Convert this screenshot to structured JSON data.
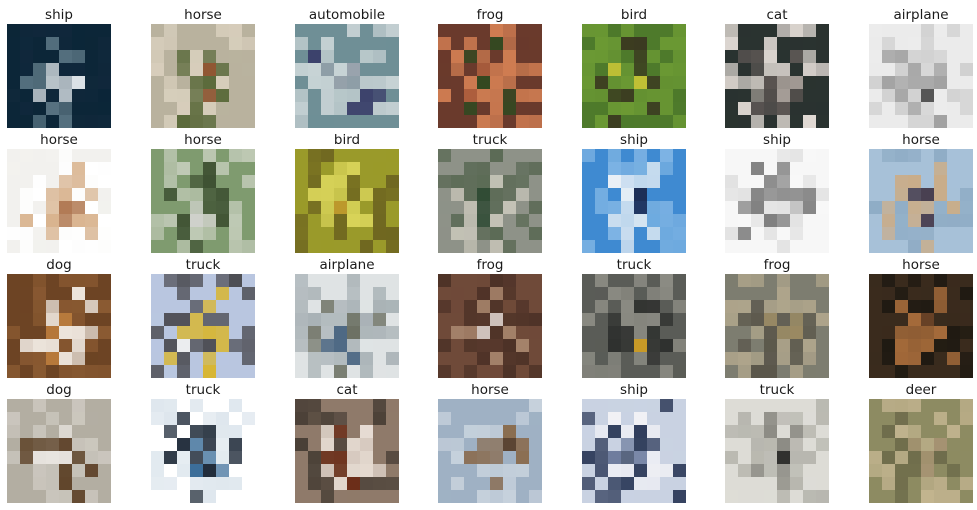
{
  "figure": {
    "rows": 4,
    "cols": 7,
    "images": [
      {
        "label": "ship",
        "palette": [
          "#0c2638",
          "#dfe6ea",
          "#5f7a88",
          "#10283b"
        ]
      },
      {
        "label": "horse",
        "palette": [
          "#b9b29e",
          "#8a4a24",
          "#5c6b3c",
          "#d8cfbd"
        ]
      },
      {
        "label": "automobile",
        "palette": [
          "#6f8f96",
          "#9aa3ad",
          "#3b3f6a",
          "#c9d4d6"
        ]
      },
      {
        "label": "frog",
        "palette": [
          "#6a3a2c",
          "#b0603e",
          "#2c4a20",
          "#d07d52"
        ]
      },
      {
        "label": "bird",
        "palette": [
          "#4e7a2b",
          "#d9cf38",
          "#3a3520",
          "#6c9a34"
        ]
      },
      {
        "label": "cat",
        "palette": [
          "#2a3330",
          "#a49c96",
          "#5c5653",
          "#e3dcd6"
        ]
      },
      {
        "label": "airplane",
        "palette": [
          "#ebebeb",
          "#2c2c2c",
          "#9b9b9b",
          "#d0d0d0"
        ]
      },
      {
        "label": "horse",
        "palette": [
          "#f2f1ee",
          "#a8683c",
          "#d9b48f",
          "#ffffff"
        ]
      },
      {
        "label": "horse",
        "palette": [
          "#7f9b6f",
          "#d6d6d2",
          "#3e5132",
          "#bfc9b5"
        ]
      },
      {
        "label": "bird",
        "palette": [
          "#9a9a2a",
          "#c7972e",
          "#d9d45a",
          "#6d6420"
        ]
      },
      {
        "label": "truck",
        "palette": [
          "#8e9288",
          "#2f4a33",
          "#c4c2b6",
          "#5b6a55"
        ]
      },
      {
        "label": "ship",
        "palette": [
          "#3f8ad1",
          "#1d2d55",
          "#eef3f7",
          "#7fb5e4"
        ]
      },
      {
        "label": "ship",
        "palette": [
          "#f7f7f7",
          "#b9b9b9",
          "#808080",
          "#e2e2e2"
        ]
      },
      {
        "label": "horse",
        "palette": [
          "#a7c1d8",
          "#3e3040",
          "#c9ad8a",
          "#8facc5"
        ]
      },
      {
        "label": "dog",
        "palette": [
          "#6d4424",
          "#c48340",
          "#f3ede6",
          "#8a5a32"
        ]
      },
      {
        "label": "truck",
        "palette": [
          "#b9c6e0",
          "#f2f2f0",
          "#d9b52b",
          "#4c4c52"
        ]
      },
      {
        "label": "airplane",
        "palette": [
          "#dfe3e4",
          "#46627e",
          "#6b6f62",
          "#a8b1b5"
        ]
      },
      {
        "label": "frog",
        "palette": [
          "#6f4a39",
          "#e9e3e0",
          "#a4826a",
          "#4d3227"
        ]
      },
      {
        "label": "truck",
        "palette": [
          "#5a5c57",
          "#e1a91c",
          "#2e302e",
          "#8b8b83"
        ]
      },
      {
        "label": "frog",
        "palette": [
          "#7d7d70",
          "#9b8a62",
          "#5b574b",
          "#b0a68c"
        ]
      },
      {
        "label": "horse",
        "palette": [
          "#3a2b1d",
          "#7a4b2a",
          "#a96d3b",
          "#1f1a12"
        ]
      },
      {
        "label": "dog",
        "palette": [
          "#b3aea2",
          "#e9e5e0",
          "#5e4228",
          "#cbc7be"
        ]
      },
      {
        "label": "truck",
        "palette": [
          "#ffffff",
          "#3c6e99",
          "#1f2b39",
          "#dde6ed"
        ]
      },
      {
        "label": "cat",
        "palette": [
          "#8f7a6a",
          "#6b2e18",
          "#e7ddd4",
          "#4a4037"
        ]
      },
      {
        "label": "horse",
        "palette": [
          "#9fb1c4",
          "#5b4431",
          "#8a6c4f",
          "#c6d1dc"
        ]
      },
      {
        "label": "ship",
        "palette": [
          "#c9d2e2",
          "#6b7a9c",
          "#f2f2f6",
          "#2e3b5a"
        ]
      },
      {
        "label": "truck",
        "palette": [
          "#dddcd6",
          "#2a2a28",
          "#8c8b84",
          "#b7b6ae"
        ]
      },
      {
        "label": "deer",
        "palette": [
          "#8d8b62",
          "#a79373",
          "#6a6848",
          "#c2b48f"
        ]
      }
    ]
  }
}
